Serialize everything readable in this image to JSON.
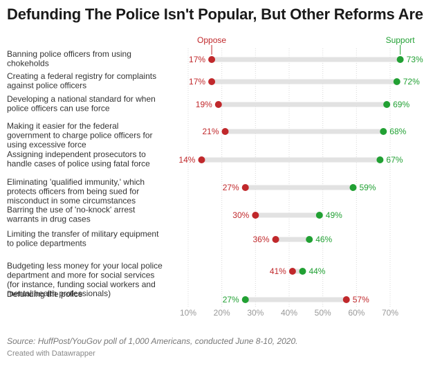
{
  "colors": {
    "oppose": "#c0282b",
    "support": "#21a033",
    "track": "#e2e2e2",
    "label_text": "#333333",
    "axis_text": "#999999"
  },
  "chart_data": {
    "type": "dot",
    "title": "Defunding The Police Isn't Popular, But Other Reforms Are",
    "xlabel": "",
    "ylabel": "",
    "xlim": [
      8,
      75
    ],
    "x_ticks": [
      10,
      20,
      30,
      40,
      50,
      60,
      70
    ],
    "x_tick_labels": [
      "10%",
      "20%",
      "30%",
      "40%",
      "50%",
      "60%",
      "70%"
    ],
    "grid": true,
    "value_suffix": "%",
    "legend": {
      "position": "top",
      "oppose_label": "Oppose",
      "support_label": "Support"
    },
    "series": [
      {
        "key": "oppose",
        "name": "Oppose",
        "color": "#c0282b"
      },
      {
        "key": "support",
        "name": "Support",
        "color": "#21a033"
      }
    ],
    "rows": [
      {
        "label": [
          "Banning police officers from using",
          "chokeholds"
        ],
        "oppose": 17,
        "support": 73
      },
      {
        "label": [
          "Creating a federal registry for complaints",
          "against police officers"
        ],
        "oppose": 17,
        "support": 72
      },
      {
        "label": [
          "Developing a national standard for when",
          "police officers can use force"
        ],
        "oppose": 19,
        "support": 69
      },
      {
        "label": [
          "Making it easier for the federal",
          "government to charge police officers for",
          "using excessive force"
        ],
        "oppose": 21,
        "support": 68
      },
      {
        "label": [
          "Assigning independent prosecutors to",
          "handle cases of police using fatal force"
        ],
        "oppose": 14,
        "support": 67
      },
      {
        "label": [
          "Eliminating 'qualified immunity,' which",
          "protects officers from being sued for",
          "misconduct in some circumstances"
        ],
        "oppose": 27,
        "support": 59
      },
      {
        "label": [
          "Barring the use of 'no-knock' arrest",
          "warrants in drug cases"
        ],
        "oppose": 30,
        "support": 49
      },
      {
        "label": [
          "Limiting the transfer of military equipment",
          "to police departments"
        ],
        "oppose": 36,
        "support": 46
      },
      {
        "label": [
          "Budgeting less money for your local police",
          "department and more for social services",
          "(for instance, funding social workers and",
          "mental health professionals)"
        ],
        "oppose": 41,
        "support": 44
      },
      {
        "label": [
          "Defunding the police"
        ],
        "oppose": 57,
        "support": 27
      }
    ]
  },
  "footer": {
    "source": "Source: HuffPost/YouGov poll of 1,000 Americans, conducted June 8-10, 2020.",
    "credit": "Created with Datawrapper"
  }
}
